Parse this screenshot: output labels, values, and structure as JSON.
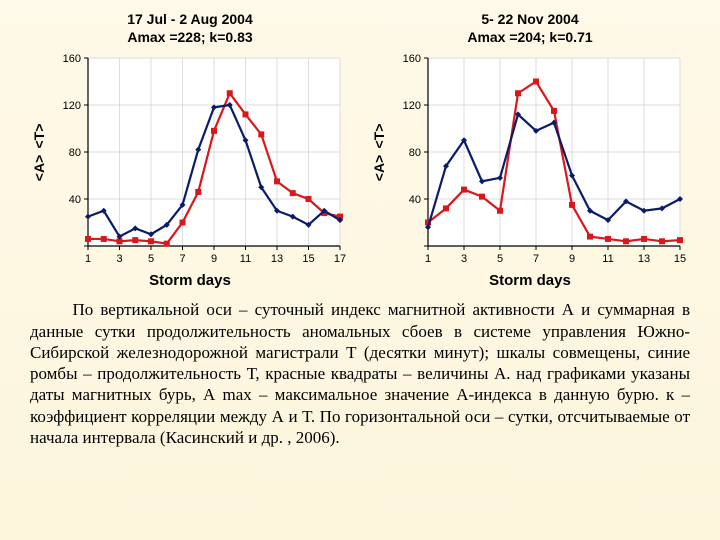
{
  "chart_left": {
    "type": "line",
    "title_line1": "17 Jul - 2 Aug 2004",
    "title_line2": "Amax =228;  k=0.83",
    "ylabel": "<T>   <A>",
    "xlabel": "Storm days",
    "xmin": 1,
    "xmax": 17,
    "ymin": 0,
    "ymax": 160,
    "yticks": [
      0,
      40,
      80,
      120,
      160
    ],
    "xticks": [
      1,
      3,
      5,
      7,
      9,
      11,
      13,
      15,
      17
    ],
    "bg_color": "#ffffff",
    "grid_color": "#d0d0d0",
    "axis_color": "#000000",
    "tick_fontsize": 11,
    "title_fontsize": 14,
    "label_fontsize": 15,
    "series": [
      {
        "name": "A",
        "marker": "square",
        "color": "#d8181d",
        "line_width": 2.2,
        "marker_size": 6,
        "x": [
          1,
          2,
          3,
          4,
          5,
          6,
          7,
          8,
          9,
          10,
          11,
          12,
          13,
          14,
          15,
          16,
          17
        ],
        "y": [
          6,
          6,
          4,
          5,
          4,
          2,
          20,
          46,
          98,
          130,
          112,
          95,
          55,
          45,
          40,
          28,
          25
        ]
      },
      {
        "name": "T",
        "marker": "diamond",
        "color": "#0a1b6a",
        "line_width": 2.2,
        "marker_size": 6,
        "x": [
          1,
          2,
          3,
          4,
          5,
          6,
          7,
          8,
          9,
          10,
          11,
          12,
          13,
          14,
          15,
          16,
          17
        ],
        "y": [
          25,
          30,
          8,
          15,
          10,
          18,
          35,
          82,
          118,
          120,
          90,
          50,
          30,
          25,
          18,
          30,
          22
        ]
      }
    ]
  },
  "chart_right": {
    "type": "line",
    "title_line1": "5- 22 Nov 2004",
    "title_line2": "Amax =204;   k=0.71",
    "ylabel": "<T>   <A>",
    "xlabel": "Storm days",
    "xmin": 1,
    "xmax": 15,
    "ymin": 0,
    "ymax": 160,
    "yticks": [
      0,
      40,
      80,
      120,
      160
    ],
    "xticks": [
      1,
      3,
      5,
      7,
      9,
      11,
      13,
      15
    ],
    "bg_color": "#ffffff",
    "grid_color": "#d0d0d0",
    "axis_color": "#000000",
    "tick_fontsize": 11,
    "title_fontsize": 14,
    "label_fontsize": 15,
    "series": [
      {
        "name": "A",
        "marker": "square",
        "color": "#d8181d",
        "line_width": 2.2,
        "marker_size": 6,
        "x": [
          1,
          2,
          3,
          4,
          5,
          6,
          7,
          8,
          9,
          10,
          11,
          12,
          13,
          14,
          15
        ],
        "y": [
          20,
          32,
          48,
          42,
          30,
          130,
          140,
          115,
          35,
          8,
          6,
          4,
          6,
          4,
          5
        ]
      },
      {
        "name": "T",
        "marker": "diamond",
        "color": "#0a1b6a",
        "line_width": 2.2,
        "marker_size": 6,
        "x": [
          1,
          2,
          3,
          4,
          5,
          6,
          7,
          8,
          9,
          10,
          11,
          12,
          13,
          14,
          15
        ],
        "y": [
          16,
          68,
          90,
          55,
          58,
          112,
          98,
          105,
          60,
          30,
          22,
          38,
          30,
          32,
          40
        ]
      }
    ]
  },
  "body_text": "По вертикальной оси – суточный индекс магнитной активности А и суммарная в данные сутки продолжительность аномальных сбоев в системе управления Южно-Сибирской железнодорожной магистрали Т (десятки минут); шкалы совмещены, синие ромбы – продолжительность Т, красные квадраты – величины А. над графиками указаны даты магнитных бурь, А max – максимальное значение А-индекса в данную бурю. к – коэффициент корреляции между А и Т. По горизонтальной оси – сутки, отсчитываемые от начала интервала (Касинский и др. , 2006)."
}
